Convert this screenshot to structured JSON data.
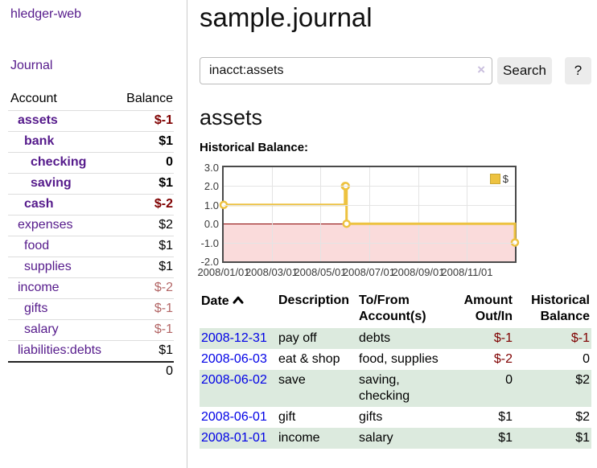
{
  "app": {
    "brand": "hledger-web"
  },
  "nav": {
    "journal": "Journal"
  },
  "sidebar": {
    "headers": {
      "account": "Account",
      "balance": "Balance"
    },
    "rows": [
      {
        "account": "assets",
        "balance": "$-1"
      },
      {
        "account": "bank",
        "balance": "$1"
      },
      {
        "account": "checking",
        "balance": "0"
      },
      {
        "account": "saving",
        "balance": "$1"
      },
      {
        "account": "cash",
        "balance": "$-2"
      },
      {
        "account": "expenses",
        "balance": "$2"
      },
      {
        "account": "food",
        "balance": "$1"
      },
      {
        "account": "supplies",
        "balance": "$1"
      },
      {
        "account": "income",
        "balance": "$-2"
      },
      {
        "account": "gifts",
        "balance": "$-1"
      },
      {
        "account": "salary",
        "balance": "$-1"
      },
      {
        "account": "liabilities:debts",
        "balance": "$1"
      }
    ],
    "total": "0"
  },
  "header": {
    "title": "sample.journal"
  },
  "search": {
    "query": "inacct:assets",
    "clear_icon": "×",
    "button": "Search",
    "help_button": "?"
  },
  "account_page": {
    "title": "assets",
    "chart_label": "Historical Balance:"
  },
  "chart_data": {
    "type": "line",
    "title": "Historical Balance",
    "style": "step",
    "x_range": [
      "2008-01-01",
      "2008-12-31"
    ],
    "ylim": [
      -2,
      3
    ],
    "y_ticks": [
      "3.0",
      "2.0",
      "1.0",
      "0.0",
      "-1.0",
      "-2.0"
    ],
    "y_tick_values": [
      3,
      2,
      1,
      0,
      -1,
      -2
    ],
    "x_ticks": [
      "2008/01/01",
      "2008/03/01",
      "2008/05/01",
      "2008/07/01",
      "2008/09/01",
      "2008/11/01"
    ],
    "legend": {
      "label": "$",
      "position": "top-right"
    },
    "series": [
      {
        "name": "$",
        "color": "#edc240",
        "points": [
          [
            "2008-01-01",
            1
          ],
          [
            "2008-06-01",
            2
          ],
          [
            "2008-06-02",
            2
          ],
          [
            "2008-06-03",
            0
          ],
          [
            "2008-12-31",
            -1
          ]
        ]
      }
    ],
    "negative_region_color": "#fadbdb",
    "zero_line_color": "#8b0000",
    "grid": true
  },
  "register": {
    "headers": {
      "date": "Date",
      "description": "Description",
      "tofrom": "To/From Account(s)",
      "amount": "Amount Out/In",
      "historical": "Historical Balance"
    },
    "rows": [
      {
        "date": "2008-12-31",
        "description": "pay off",
        "tofrom": "debts",
        "amount": "$-1",
        "historical": "$-1"
      },
      {
        "date": "2008-06-03",
        "description": "eat & shop",
        "tofrom": "food, supplies",
        "amount": "$-2",
        "historical": "0"
      },
      {
        "date": "2008-06-02",
        "description": "save",
        "tofrom": "saving, checking",
        "amount": "0",
        "historical": "$2"
      },
      {
        "date": "2008-06-01",
        "description": "gift",
        "tofrom": "gifts",
        "amount": "$1",
        "historical": "$2"
      },
      {
        "date": "2008-01-01",
        "description": "income",
        "tofrom": "salary",
        "amount": "$1",
        "historical": "$1"
      }
    ]
  },
  "colors": {
    "link_purple": "#551a8b",
    "link_blue": "#0000e6",
    "negative": "#7f0000",
    "negative_muted": "#b36666",
    "row_green": "#dceade",
    "series_yellow": "#edc240"
  }
}
